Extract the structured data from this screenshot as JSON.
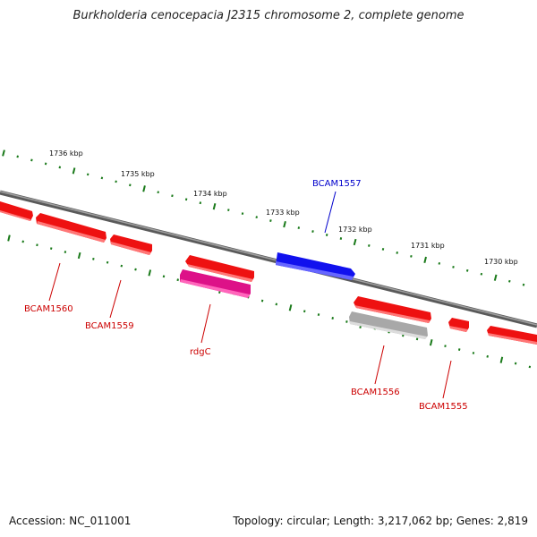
{
  "header": {
    "title": "Burkholderia cenocepacia J2315 chromosome 2, complete genome"
  },
  "footer": {
    "accession": "Accession: NC_011001",
    "summary": "Topology: circular; Length: 3,217,062 bp; Genes: 2,819"
  },
  "ruler": {
    "labels": [
      "1736 kbp",
      "1735 kbp",
      "1734 kbp",
      "1733 kbp",
      "1732 kbp",
      "1731 kbp",
      "1730 kbp"
    ]
  },
  "colors": {
    "backbone": "#808080",
    "tick": "#1a7a1a",
    "gene_red": "#ee1111",
    "gene_blue": "#1111ee",
    "gene_pink": "#ee2299",
    "gene_gray": "#b8b8b8",
    "label_red": "#cc0000",
    "label_blue": "#0000cc"
  },
  "genes": [
    {
      "id": "BCAM1560",
      "label": "BCAM1560",
      "color": "gene_red"
    },
    {
      "id": "BCAM1559",
      "label": "BCAM1559",
      "color": "gene_red"
    },
    {
      "id": "rdgC",
      "label": "rdgC",
      "color": "gene_pink"
    },
    {
      "id": "BCAM1557",
      "label": "BCAM1557",
      "color": "gene_blue"
    },
    {
      "id": "BCAM1556",
      "label": "BCAM1556",
      "color": "gene_gray"
    },
    {
      "id": "BCAM1555",
      "label": "BCAM1555",
      "color": "gene_red"
    }
  ]
}
